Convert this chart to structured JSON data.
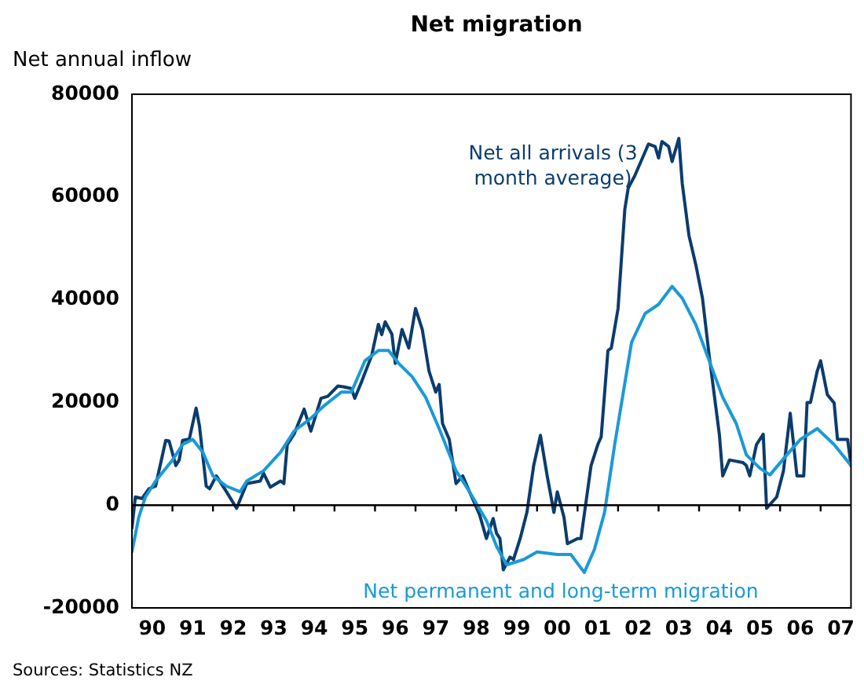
{
  "chart_data": {
    "type": "line",
    "title": "Net migration",
    "ylabel": "Net annual inflow",
    "annotations": [
      "Sources: Statistics NZ"
    ],
    "xlim": [
      "1990-01",
      "2007-10"
    ],
    "xticks": [
      {
        "value": "1990-07",
        "label": "90"
      },
      {
        "value": "1991-01",
        "label": null
      },
      {
        "value": "1991-07",
        "label": "91"
      },
      {
        "value": "1992-01",
        "label": null
      },
      {
        "value": "1992-07",
        "label": "92"
      },
      {
        "value": "1993-01",
        "label": null
      },
      {
        "value": "1993-07",
        "label": "93"
      },
      {
        "value": "1994-01",
        "label": null
      },
      {
        "value": "1994-07",
        "label": "94"
      },
      {
        "value": "1995-01",
        "label": null
      },
      {
        "value": "1995-07",
        "label": "95"
      },
      {
        "value": "1996-01",
        "label": null
      },
      {
        "value": "1996-07",
        "label": "96"
      },
      {
        "value": "1997-01",
        "label": null
      },
      {
        "value": "1997-07",
        "label": "97"
      },
      {
        "value": "1998-01",
        "label": null
      },
      {
        "value": "1998-07",
        "label": "98"
      },
      {
        "value": "1999-01",
        "label": null
      },
      {
        "value": "1999-07",
        "label": "99"
      },
      {
        "value": "2000-01",
        "label": null
      },
      {
        "value": "2000-07",
        "label": "00"
      },
      {
        "value": "2001-01",
        "label": null
      },
      {
        "value": "2001-07",
        "label": "01"
      },
      {
        "value": "2002-01",
        "label": null
      },
      {
        "value": "2002-07",
        "label": "02"
      },
      {
        "value": "2003-01",
        "label": null
      },
      {
        "value": "2003-07",
        "label": "03"
      },
      {
        "value": "2004-01",
        "label": null
      },
      {
        "value": "2004-07",
        "label": "04"
      },
      {
        "value": "2005-01",
        "label": null
      },
      {
        "value": "2005-07",
        "label": "05"
      },
      {
        "value": "2006-01",
        "label": null
      },
      {
        "value": "2006-07",
        "label": "06"
      },
      {
        "value": "2007-01",
        "label": null
      },
      {
        "value": "2007-07",
        "label": "07"
      }
    ],
    "ylim": [
      -20000,
      80000
    ],
    "yticks": [
      -20000,
      0,
      20000,
      40000,
      60000,
      80000
    ],
    "grid": false,
    "legend": false,
    "marker": "none",
    "line_style": "solid",
    "ref_lines": [
      {
        "axis": "y",
        "value": 0,
        "color": "#000000"
      }
    ],
    "series": [
      {
        "name": "Net all arrivals (3 month average)",
        "color": "#0b3c6e",
        "x": [
          "1990-01",
          "1990-02",
          "1990-04",
          "1990-06",
          "1990-08",
          "1990-11",
          "1990-12",
          "1991-02",
          "1991-03",
          "1991-04",
          "1991-06",
          "1991-08",
          "1991-09",
          "1991-11",
          "1991-12",
          "1992-02",
          "1992-05",
          "1992-08",
          "1992-11",
          "1993-03",
          "1993-04",
          "1993-06",
          "1993-09",
          "1993-10",
          "1993-11",
          "1994-01",
          "1994-04",
          "1994-06",
          "1994-09",
          "1994-11",
          "1995-02",
          "1995-04",
          "1995-06",
          "1995-07",
          "1995-09",
          "1995-12",
          "1996-02",
          "1996-03",
          "1996-04",
          "1996-06",
          "1996-07",
          "1996-09",
          "1996-11",
          "1997-01",
          "1997-03",
          "1997-05",
          "1997-07",
          "1997-08",
          "1997-09",
          "1997-11",
          "1998-01",
          "1998-03",
          "1998-05",
          "1998-06",
          "1998-08",
          "1998-10",
          "1998-12",
          "1999-01",
          "1999-02",
          "1999-03",
          "1999-05",
          "1999-06",
          "1999-08",
          "1999-10",
          "1999-12",
          "2000-02",
          "2000-04",
          "2000-06",
          "2000-07",
          "2000-09",
          "2000-10",
          "2001-01",
          "2001-02",
          "2001-05",
          "2001-07",
          "2001-08",
          "2001-10",
          "2001-11",
          "2002-01",
          "2002-03",
          "2002-04",
          "2002-06",
          "2002-10",
          "2002-12",
          "2003-01",
          "2003-02",
          "2003-04",
          "2003-05",
          "2003-07",
          "2003-08",
          "2003-10",
          "2003-12",
          "2004-02",
          "2004-04",
          "2004-07",
          "2004-08",
          "2004-10",
          "2005-02",
          "2005-03",
          "2005-04",
          "2005-06",
          "2005-08",
          "2005-09",
          "2005-12",
          "2006-02",
          "2006-04",
          "2006-06",
          "2006-08",
          "2006-09",
          "2006-10",
          "2006-12",
          "2007-01",
          "2007-03",
          "2007-05",
          "2007-06",
          "2007-08",
          "2007-09",
          "2007-10"
        ],
        "values": [
          -4500,
          1600,
          1300,
          3200,
          3700,
          12600,
          12500,
          7700,
          8800,
          12600,
          12900,
          18900,
          15400,
          3700,
          3200,
          5700,
          2600,
          -600,
          4200,
          4700,
          6200,
          3500,
          4700,
          4200,
          11800,
          13800,
          18700,
          14400,
          20800,
          21200,
          23200,
          23000,
          22700,
          20800,
          24000,
          29100,
          35200,
          33200,
          35700,
          33300,
          27600,
          34200,
          30600,
          38300,
          34200,
          26100,
          22000,
          23500,
          15900,
          12800,
          4200,
          5700,
          2600,
          1100,
          -1900,
          -6500,
          -2600,
          -5500,
          -6500,
          -12600,
          -10100,
          -10600,
          -6500,
          -1400,
          7700,
          13600,
          5700,
          -1400,
          2600,
          -2400,
          -7500,
          -6500,
          -6500,
          7700,
          11800,
          13300,
          30100,
          30600,
          38300,
          57600,
          61700,
          64200,
          70300,
          69800,
          67600,
          70800,
          69800,
          66900,
          71400,
          62700,
          52500,
          46900,
          40300,
          29100,
          13800,
          5700,
          8800,
          8300,
          7700,
          5700,
          11800,
          13800,
          -600,
          1600,
          6700,
          17900,
          5700,
          5700,
          20000,
          20000,
          26100,
          28100,
          21500,
          19900,
          12800,
          12800,
          12800,
          7700
        ]
      },
      {
        "name": "Net permanent and long-term migration",
        "color": "#1a9ad6",
        "x": [
          "1990-01",
          "1990-03",
          "1990-05",
          "1990-08",
          "1991-01",
          "1991-04",
          "1991-07",
          "1991-10",
          "1992-01",
          "1992-05",
          "1992-09",
          "1992-11",
          "1993-04",
          "1993-09",
          "1994-01",
          "1994-06",
          "1994-10",
          "1995-03",
          "1995-06",
          "1995-10",
          "1996-02",
          "1996-05",
          "1996-08",
          "1996-12",
          "1997-04",
          "1997-08",
          "1998-01",
          "1998-05",
          "1998-10",
          "1999-01",
          "1999-04",
          "1999-09",
          "2000-01",
          "2000-07",
          "2000-11",
          "2001-03",
          "2001-06",
          "2001-09",
          "2001-12",
          "2002-05",
          "2002-09",
          "2003-01",
          "2003-05",
          "2003-08",
          "2003-12",
          "2004-04",
          "2004-08",
          "2004-12",
          "2005-03",
          "2005-07",
          "2005-10",
          "2006-03",
          "2006-07",
          "2006-12",
          "2007-05",
          "2007-10"
        ],
        "values": [
          -9100,
          -2400,
          1600,
          4700,
          8800,
          11800,
          12800,
          10300,
          5700,
          3700,
          2600,
          4700,
          6700,
          10300,
          14400,
          16900,
          19400,
          22000,
          22000,
          28100,
          30100,
          30100,
          27600,
          25000,
          21000,
          14900,
          6700,
          2600,
          -3000,
          -8000,
          -11600,
          -10600,
          -9100,
          -9600,
          -9600,
          -13100,
          -8600,
          -1400,
          11800,
          31700,
          37300,
          39100,
          42600,
          40300,
          35200,
          28100,
          21000,
          15900,
          9800,
          7200,
          5900,
          9800,
          12800,
          14900,
          11800,
          7700
        ]
      }
    ]
  }
}
